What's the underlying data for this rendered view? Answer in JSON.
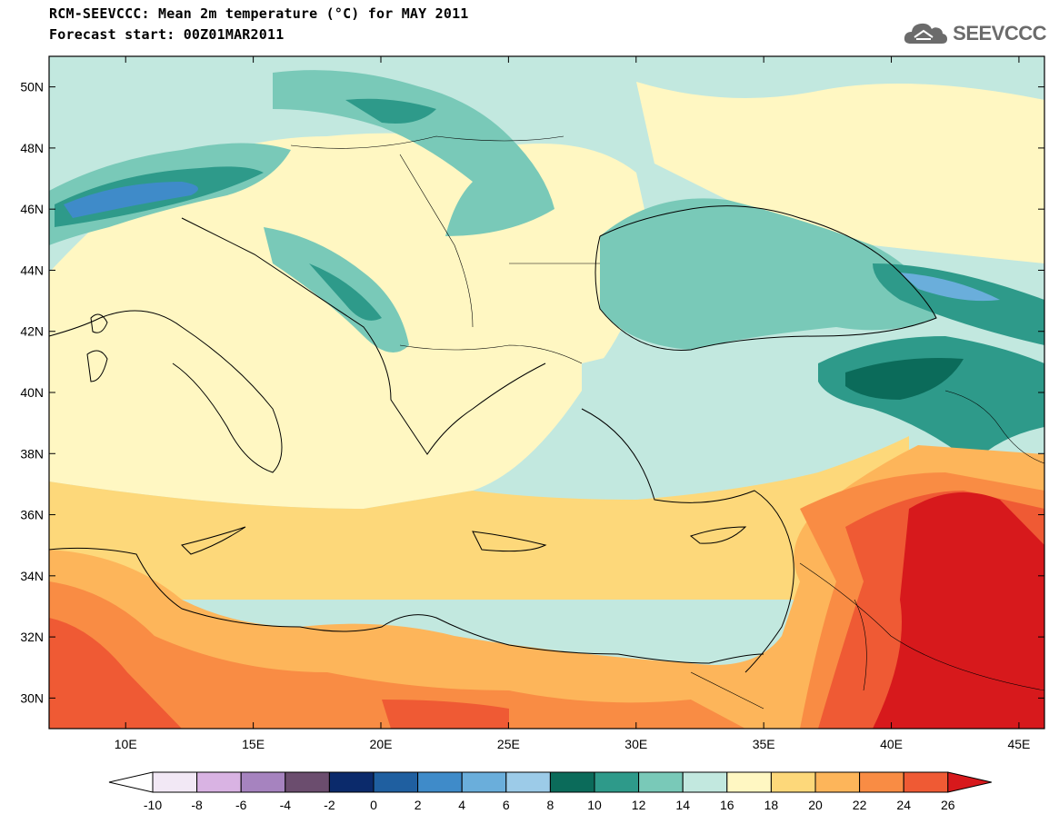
{
  "header": {
    "title": "RCM-SEEVCCC: Mean 2m temperature (°C) for MAY 2011",
    "subtitle": "Forecast start: 00Z01MAR2011"
  },
  "logo": {
    "text": "SEEVCCC",
    "icon": "cloud-icon"
  },
  "map": {
    "type": "contour-map",
    "lon_range": [
      7,
      46
    ],
    "lat_range": [
      29,
      51
    ],
    "lon_ticks": [
      {
        "value": 10,
        "label": "10E"
      },
      {
        "value": 15,
        "label": "15E"
      },
      {
        "value": 20,
        "label": "20E"
      },
      {
        "value": 25,
        "label": "25E"
      },
      {
        "value": 30,
        "label": "30E"
      },
      {
        "value": 35,
        "label": "35E"
      },
      {
        "value": 40,
        "label": "40E"
      },
      {
        "value": 45,
        "label": "45E"
      }
    ],
    "lat_ticks": [
      {
        "value": 30,
        "label": "30N"
      },
      {
        "value": 32,
        "label": "32N"
      },
      {
        "value": 34,
        "label": "34N"
      },
      {
        "value": 36,
        "label": "36N"
      },
      {
        "value": 38,
        "label": "38N"
      },
      {
        "value": 40,
        "label": "40N"
      },
      {
        "value": 42,
        "label": "42N"
      },
      {
        "value": 44,
        "label": "44N"
      },
      {
        "value": 46,
        "label": "46N"
      },
      {
        "value": 48,
        "label": "48N"
      },
      {
        "value": 50,
        "label": "50N"
      }
    ]
  },
  "colorbar": {
    "levels": [
      "-10",
      "-8",
      "-6",
      "-4",
      "-2",
      "0",
      "2",
      "4",
      "6",
      "8",
      "10",
      "12",
      "14",
      "16",
      "18",
      "20",
      "22",
      "24",
      "26"
    ],
    "below_color": "#ffffff",
    "above_color": "#d7191c",
    "colors": [
      "#f2e8f5",
      "#d9b3e3",
      "#a683bf",
      "#6b4d6e",
      "#0b2a6b",
      "#1f5fa0",
      "#3f8bc9",
      "#6aaedb",
      "#9ccbe8",
      "#0b6b5a",
      "#2e9a8a",
      "#79c9b8",
      "#c2e8df",
      "#fff7c2",
      "#fdd87a",
      "#fdb55a",
      "#f98c44",
      "#ef5a34"
    ]
  }
}
